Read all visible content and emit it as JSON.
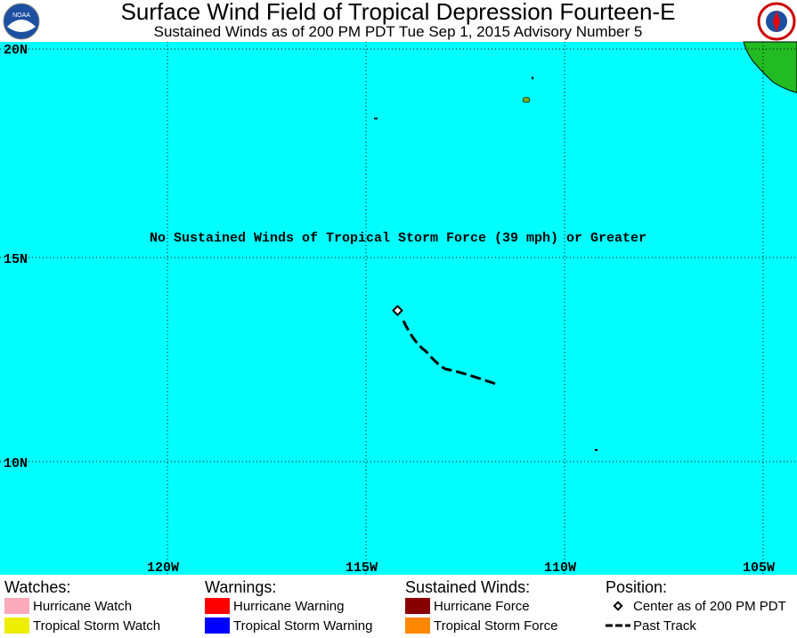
{
  "header": {
    "title": "Surface Wind Field of Tropical Depression Fourteen-E",
    "subtitle": "Sustained Winds as of 200 PM PDT Tue Sep 1, 2015    Advisory Number 5"
  },
  "map": {
    "note": "No Sustained Winds of Tropical Storm Force (39 mph) or Greater",
    "lat_labels": [
      "20N",
      "15N",
      "10N"
    ],
    "lon_labels": [
      "120W",
      "115W",
      "110W",
      "105W"
    ]
  },
  "legend": {
    "groups": [
      {
        "title": "Watches:",
        "items": [
          {
            "label": "Hurricane Watch",
            "color": "#ffaabb"
          },
          {
            "label": "Tropical Storm Watch",
            "color": "#eeee00"
          }
        ]
      },
      {
        "title": "Warnings:",
        "items": [
          {
            "label": "Hurricane Warning",
            "color": "#ff0000"
          },
          {
            "label": "Tropical Storm Warning",
            "color": "#0000ff"
          }
        ]
      },
      {
        "title": "Sustained Winds:",
        "items": [
          {
            "label": "Hurricane Force",
            "color": "#880000"
          },
          {
            "label": "Tropical Storm Force",
            "color": "#ff8800"
          }
        ]
      },
      {
        "title": "Position:",
        "items": [
          {
            "label": "Center as of 200 PM PDT"
          },
          {
            "label": "Past Track"
          }
        ]
      }
    ]
  }
}
